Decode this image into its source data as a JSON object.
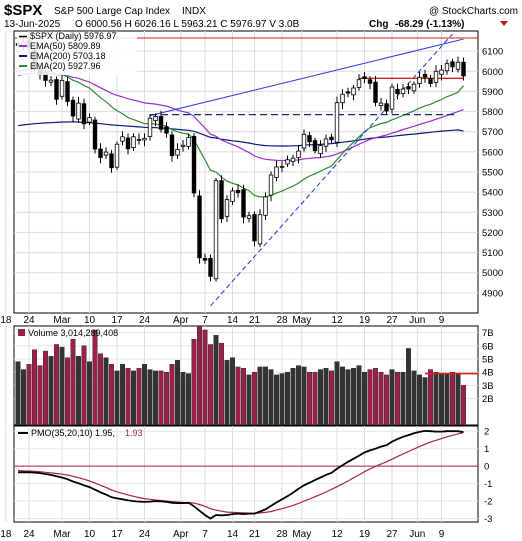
{
  "header": {
    "symbol": "$SPX",
    "name": "S&P 500 Large Cap Index",
    "exchange": "INDX",
    "credit": "@ StockCharts.com",
    "date": "13-Jun-2025",
    "ohlc": "O 6000.56  H 6026.16  L 5963.21  C 5976.97  V 3.0B",
    "chg_label": "Chg",
    "chg_value": "-68.29 (-1.13%)"
  },
  "legend": {
    "price": "$SPX (Daily) 5976.97",
    "ema50": "EMA(50) 5809.89",
    "ema200": "EMA(200) 5703.18",
    "ema20": "EMA(20) 5927.96"
  },
  "volume_label": "Volume 3,014,289,408",
  "pmo_label": {
    "prefix": "PMO(35,20,10) 1.95,",
    "signal": "1.93"
  },
  "x_ticks": [
    "18",
    "24",
    "Mar",
    "10",
    "17",
    "24",
    "Apr",
    "7",
    "14",
    "21",
    "28",
    "May",
    "12",
    "19",
    "27",
    "Jun",
    "9"
  ],
  "colors": {
    "up": "#000000",
    "down": "#000000",
    "ema50": "#9b30c8",
    "ema200": "#0b1a7a",
    "ema20": "#2e8b2e",
    "trend": "#2233dd",
    "resistance": "#cc2222",
    "volume_down": "#9b1f4b",
    "volume_up": "#333333",
    "pmo": "#000000",
    "pmo_signal": "#aa2244"
  },
  "chart_data": [
    {
      "type": "candlestick",
      "title": "$SPX S&P 500 Large Cap Index INDX",
      "ylim": [
        4800,
        6200
      ],
      "y_ticks": [
        4900,
        5000,
        5100,
        5200,
        5300,
        5400,
        5500,
        5600,
        5700,
        5800,
        5900,
        6000,
        6100
      ],
      "x": [
        "Feb18",
        "Feb19",
        "Feb20",
        "Feb21",
        "Feb24",
        "Feb25",
        "Feb26",
        "Feb27",
        "Feb28",
        "Mar3",
        "Mar4",
        "Mar5",
        "Mar6",
        "Mar7",
        "Mar10",
        "Mar11",
        "Mar12",
        "Mar13",
        "Mar14",
        "Mar17",
        "Mar18",
        "Mar19",
        "Mar20",
        "Mar21",
        "Mar24",
        "Mar25",
        "Mar26",
        "Mar27",
        "Mar28",
        "Mar31",
        "Apr1",
        "Apr2",
        "Apr3",
        "Apr4",
        "Apr7",
        "Apr8",
        "Apr9",
        "Apr10",
        "Apr11",
        "Apr14",
        "Apr15",
        "Apr16",
        "Apr17",
        "Apr21",
        "Apr22",
        "Apr23",
        "Apr24",
        "Apr25",
        "Apr28",
        "Apr29",
        "Apr30",
        "May1",
        "May2",
        "May5",
        "May6",
        "May7",
        "May8",
        "May9",
        "May12",
        "May13",
        "May14",
        "May15",
        "May16",
        "May19",
        "May20",
        "May21",
        "May22",
        "May23",
        "May27",
        "May28",
        "May29",
        "May30",
        "Jun2",
        "Jun3",
        "Jun4",
        "Jun5",
        "Jun6",
        "Jun9",
        "Jun10",
        "Jun11",
        "Jun12",
        "Jun13"
      ],
      "close": [
        6129,
        6144,
        6117,
        6013,
        5983,
        5955,
        5956,
        5861,
        5955,
        5850,
        5778,
        5842,
        5739,
        5770,
        5614,
        5572,
        5599,
        5521,
        5638,
        5675,
        5615,
        5675,
        5662,
        5667,
        5767,
        5776,
        5712,
        5693,
        5581,
        5612,
        5633,
        5671,
        5396,
        5074,
        5062,
        4982,
        5457,
        5268,
        5363,
        5406,
        5397,
        5276,
        5283,
        5158,
        5288,
        5376,
        5485,
        5525,
        5528,
        5561,
        5569,
        5604,
        5687,
        5650,
        5606,
        5631,
        5664,
        5660,
        5844,
        5886,
        5892,
        5917,
        5958,
        5964,
        5940,
        5845,
        5842,
        5803,
        5922,
        5889,
        5912,
        5912,
        5936,
        5970,
        5971,
        5939,
        6000,
        6006,
        6038,
        6022,
        6045,
        5977
      ],
      "ema20": [
        6000,
        6006,
        6010,
        6010,
        6007,
        6002,
        5999,
        5987,
        5984,
        5972,
        5955,
        5946,
        5929,
        5917,
        5893,
        5869,
        5849,
        5824,
        5805,
        5790,
        5770,
        5760,
        5750,
        5740,
        5740,
        5738,
        5734,
        5728,
        5710,
        5700,
        5692,
        5688,
        5660,
        5610,
        5560,
        5508,
        5500,
        5474,
        5455,
        5444,
        5436,
        5420,
        5407,
        5384,
        5377,
        5377,
        5384,
        5395,
        5405,
        5418,
        5430,
        5445,
        5465,
        5480,
        5491,
        5504,
        5518,
        5530,
        5561,
        5592,
        5621,
        5648,
        5675,
        5700,
        5720,
        5731,
        5741,
        5746,
        5759,
        5769,
        5781,
        5792,
        5804,
        5817,
        5828,
        5836,
        5849,
        5860,
        5874,
        5884,
        5896,
        5928
      ],
      "ema50": [
        5980,
        5985,
        5989,
        5990,
        5990,
        5989,
        5988,
        5984,
        5983,
        5978,
        5970,
        5965,
        5955,
        5947,
        5933,
        5918,
        5905,
        5890,
        5881,
        5873,
        5864,
        5857,
        5850,
        5843,
        5840,
        5837,
        5832,
        5827,
        5817,
        5808,
        5800,
        5794,
        5776,
        5746,
        5718,
        5688,
        5677,
        5659,
        5646,
        5636,
        5625,
        5610,
        5597,
        5580,
        5570,
        5563,
        5560,
        5558,
        5557,
        5557,
        5558,
        5560,
        5565,
        5568,
        5570,
        5572,
        5576,
        5580,
        5590,
        5601,
        5612,
        5625,
        5638,
        5650,
        5662,
        5670,
        5677,
        5683,
        5693,
        5701,
        5711,
        5719,
        5727,
        5736,
        5745,
        5752,
        5762,
        5771,
        5781,
        5790,
        5800,
        5810
      ],
      "ema200": [
        5730,
        5734,
        5737,
        5740,
        5742,
        5744,
        5745,
        5746,
        5748,
        5748,
        5749,
        5748,
        5746,
        5745,
        5743,
        5740,
        5737,
        5734,
        5732,
        5730,
        5728,
        5726,
        5724,
        5722,
        5721,
        5720,
        5718,
        5717,
        5714,
        5712,
        5709,
        5707,
        5702,
        5692,
        5682,
        5672,
        5669,
        5663,
        5659,
        5655,
        5652,
        5648,
        5644,
        5638,
        5634,
        5631,
        5630,
        5629,
        5629,
        5629,
        5630,
        5631,
        5633,
        5635,
        5636,
        5637,
        5639,
        5641,
        5644,
        5648,
        5651,
        5655,
        5659,
        5663,
        5667,
        5670,
        5672,
        5674,
        5677,
        5680,
        5683,
        5686,
        5688,
        5691,
        5694,
        5697,
        5700,
        5703,
        5705,
        5707,
        5709,
        5703
      ]
    },
    {
      "type": "bar",
      "title": "Volume 3,014,289,408",
      "unit": "B",
      "ylim": [
        0,
        7.5
      ],
      "y_ticks": [
        2,
        3,
        4,
        5,
        6,
        7
      ],
      "values": [
        4.8,
        4.2,
        4.6,
        5.7,
        4.5,
        5.6,
        5.2,
        6.1,
        5.9,
        5.1,
        6.5,
        5.2,
        6.0,
        4.8,
        7.2,
        5.4,
        5.1,
        4.6,
        4.1,
        4.6,
        4.3,
        4.1,
        4.3,
        4.6,
        4.2,
        4.1,
        4.1,
        4.0,
        4.6,
        4.9,
        4.0,
        3.9,
        6.5,
        7.5,
        7.2,
        6.1,
        6.8,
        6.2,
        4.9,
        5.1,
        4.4,
        4.3,
        3.8,
        4.0,
        4.4,
        4.4,
        4.2,
        3.8,
        3.9,
        4.0,
        4.3,
        4.5,
        4.4,
        4.0,
        4.0,
        4.2,
        4.3,
        4.1,
        4.8,
        4.4,
        4.2,
        4.3,
        4.5,
        4.0,
        4.2,
        4.3,
        4.0,
        3.8,
        4.2,
        4.0,
        4.0,
        5.8,
        4.1,
        3.8,
        3.6,
        4.2,
        4.0,
        3.9,
        3.9,
        4.0,
        3.9,
        3.0
      ],
      "reference_line": 3.9
    },
    {
      "type": "line",
      "title": "PMO(35,20,10)",
      "ylim": [
        -3.2,
        2.3
      ],
      "y_ticks": [
        2,
        1,
        0,
        -1,
        -2,
        -3
      ],
      "series": [
        {
          "name": "PMO",
          "values": [
            -0.35,
            -0.35,
            -0.35,
            -0.37,
            -0.4,
            -0.45,
            -0.5,
            -0.58,
            -0.65,
            -0.75,
            -0.88,
            -0.98,
            -1.1,
            -1.2,
            -1.35,
            -1.5,
            -1.63,
            -1.78,
            -1.85,
            -1.9,
            -1.96,
            -2.0,
            -2.03,
            -2.05,
            -2.03,
            -2.0,
            -2.02,
            -2.05,
            -2.1,
            -2.12,
            -2.12,
            -2.1,
            -2.3,
            -2.55,
            -2.8,
            -3.0,
            -2.8,
            -2.82,
            -2.8,
            -2.75,
            -2.72,
            -2.75,
            -2.72,
            -2.72,
            -2.6,
            -2.48,
            -2.28,
            -2.08,
            -1.9,
            -1.72,
            -1.52,
            -1.3,
            -1.1,
            -0.95,
            -0.8,
            -0.65,
            -0.5,
            -0.38,
            -0.15,
            0.05,
            0.25,
            0.42,
            0.6,
            0.78,
            0.9,
            1.0,
            1.12,
            1.2,
            1.4,
            1.55,
            1.68,
            1.78,
            1.88,
            1.96,
            2.02,
            2.0,
            1.98,
            1.98,
            2.0,
            2.0,
            2.0,
            1.95
          ]
        },
        {
          "name": "Signal",
          "values": [
            -0.25,
            -0.27,
            -0.28,
            -0.3,
            -0.32,
            -0.35,
            -0.38,
            -0.42,
            -0.46,
            -0.51,
            -0.58,
            -0.66,
            -0.75,
            -0.85,
            -0.97,
            -1.1,
            -1.22,
            -1.36,
            -1.47,
            -1.56,
            -1.65,
            -1.73,
            -1.8,
            -1.86,
            -1.9,
            -1.94,
            -1.97,
            -2.0,
            -2.03,
            -2.06,
            -2.08,
            -2.09,
            -2.12,
            -2.2,
            -2.3,
            -2.44,
            -2.52,
            -2.58,
            -2.63,
            -2.65,
            -2.66,
            -2.68,
            -2.69,
            -2.7,
            -2.68,
            -2.65,
            -2.6,
            -2.52,
            -2.44,
            -2.35,
            -2.25,
            -2.14,
            -2.0,
            -1.88,
            -1.75,
            -1.62,
            -1.48,
            -1.33,
            -1.18,
            -1.02,
            -0.85,
            -0.67,
            -0.5,
            -0.32,
            -0.16,
            -0.02,
            0.12,
            0.25,
            0.4,
            0.55,
            0.7,
            0.84,
            0.98,
            1.12,
            1.25,
            1.38,
            1.48,
            1.58,
            1.68,
            1.77,
            1.85,
            1.93
          ]
        }
      ]
    }
  ]
}
